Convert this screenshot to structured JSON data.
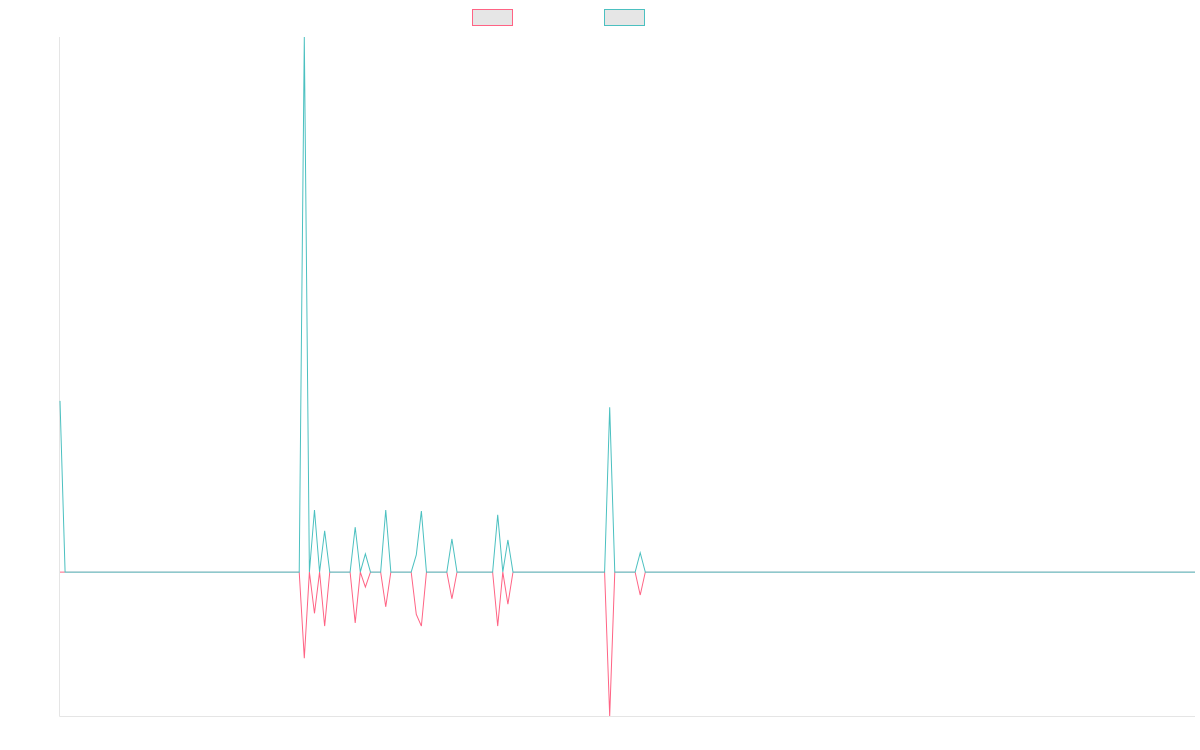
{
  "chart_data": {
    "type": "line",
    "ylim": [
      -26.9,
      100
    ],
    "series": [
      {
        "color": "#ff6384",
        "values": [
          0,
          0,
          0,
          0,
          0,
          0,
          0,
          0,
          0,
          0,
          0,
          0,
          0,
          0,
          0,
          0,
          0,
          0,
          0,
          0,
          0,
          0,
          0,
          0,
          0,
          0,
          0,
          0,
          0,
          0,
          0,
          0,
          0,
          0,
          0,
          0,
          0,
          0,
          0,
          0,
          0,
          0,
          0,
          0,
          0,
          0,
          0,
          0,
          -16.1,
          0,
          -7.7,
          0,
          -10.1,
          0,
          0,
          0,
          0,
          0,
          -9.5,
          0,
          -2.8,
          0,
          0,
          0,
          -6.5,
          0,
          0,
          0,
          0,
          0,
          -7.9,
          -10.1,
          0,
          0,
          0,
          0,
          0,
          -5,
          0,
          0,
          0,
          0,
          0,
          0,
          0,
          0,
          -10.1,
          0,
          -6,
          0,
          0,
          0,
          0,
          0,
          0,
          0,
          0,
          0,
          0,
          0,
          0,
          0,
          0,
          0,
          0,
          0,
          0,
          0,
          -26.9,
          0,
          0,
          0,
          0,
          0,
          -4.3,
          0,
          0,
          0,
          0,
          0,
          0,
          0,
          0,
          0,
          0,
          0,
          0,
          0,
          0,
          0,
          0,
          0,
          0,
          0,
          0,
          0,
          0,
          0,
          0,
          0,
          0,
          0,
          0,
          0,
          0,
          0,
          0,
          0,
          0,
          0,
          0,
          0,
          0,
          0,
          0,
          0,
          0,
          0,
          0,
          0,
          0,
          0,
          0,
          0,
          0,
          0,
          0,
          0,
          0,
          0,
          0,
          0,
          0,
          0,
          0,
          0,
          0,
          0,
          0,
          0,
          0,
          0,
          0,
          0,
          0,
          0,
          0,
          0,
          0,
          0,
          0,
          0,
          0,
          0,
          0,
          0,
          0,
          0,
          0,
          0,
          0,
          0,
          0,
          0,
          0,
          0,
          0,
          0,
          0,
          0,
          0,
          0,
          0,
          0,
          0,
          0,
          0,
          0,
          0,
          0,
          0,
          0,
          0,
          0
        ]
      },
      {
        "color": "#4bc0c0",
        "values": [
          32,
          0,
          0,
          0,
          0,
          0,
          0,
          0,
          0,
          0,
          0,
          0,
          0,
          0,
          0,
          0,
          0,
          0,
          0,
          0,
          0,
          0,
          0,
          0,
          0,
          0,
          0,
          0,
          0,
          0,
          0,
          0,
          0,
          0,
          0,
          0,
          0,
          0,
          0,
          0,
          0,
          0,
          0,
          0,
          0,
          0,
          0,
          0,
          100,
          0,
          11.6,
          0,
          7.7,
          0,
          0,
          0,
          0,
          0,
          8.4,
          0,
          3.4,
          0,
          0,
          0,
          11.6,
          0,
          0,
          0,
          0,
          0,
          3.2,
          11.4,
          0,
          0,
          0,
          0,
          0,
          6.2,
          0,
          0,
          0,
          0,
          0,
          0,
          0,
          0,
          10.7,
          0,
          6,
          0,
          0,
          0,
          0,
          0,
          0,
          0,
          0,
          0,
          0,
          0,
          0,
          0,
          0,
          0,
          0,
          0,
          0,
          0,
          30.8,
          0,
          0,
          0,
          0,
          0,
          3.6,
          0,
          0,
          0,
          0,
          0,
          0,
          0,
          0,
          0,
          0,
          0,
          0,
          0,
          0,
          0,
          0,
          0,
          0,
          0,
          0,
          0,
          0,
          0,
          0,
          0,
          0,
          0,
          0,
          0,
          0,
          0,
          0,
          0,
          0,
          0,
          0,
          0,
          0,
          0,
          0,
          0,
          0,
          0,
          0,
          0,
          0,
          0,
          0,
          0,
          0,
          0,
          0,
          0,
          0,
          0,
          0,
          0,
          0,
          0,
          0,
          0,
          0,
          0,
          0,
          0,
          0,
          0,
          0,
          0,
          0,
          0,
          0,
          0,
          0,
          0,
          0,
          0,
          0,
          0,
          0,
          0,
          0,
          0,
          0,
          0,
          0,
          0,
          0,
          0,
          0,
          0,
          0,
          0,
          0,
          0,
          0,
          0,
          0,
          0,
          0,
          0,
          0,
          0,
          0,
          0,
          0,
          0,
          0,
          0
        ]
      }
    ]
  }
}
